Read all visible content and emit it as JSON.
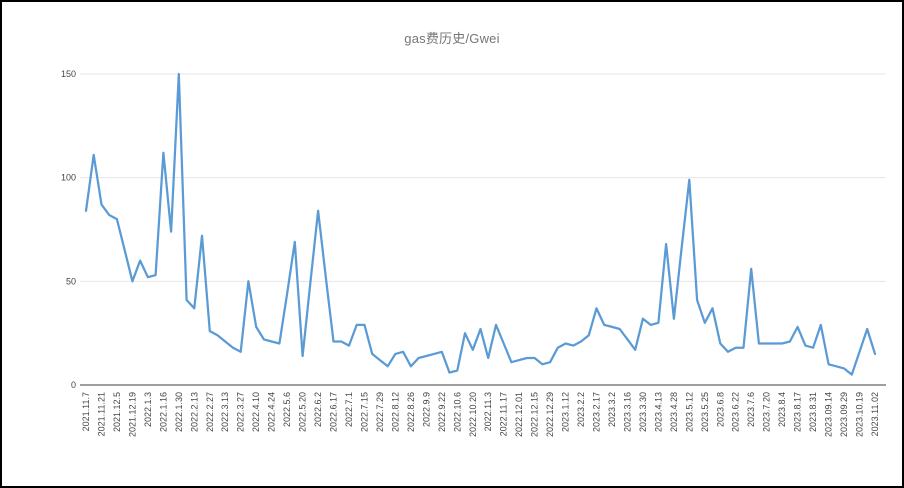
{
  "title": "gas费历史/Gwei",
  "chart_data": {
    "type": "line",
    "title": "gas费历史/Gwei",
    "unit": "Gwei",
    "xlabel": "",
    "ylabel": "",
    "ylim": [
      0,
      150
    ],
    "yticks": [
      0,
      50,
      100,
      150
    ],
    "grid": true,
    "legend_position": "none",
    "line_color": "#5b9bd5",
    "gridline_color": "#e6e6e6",
    "axis_color": "#9e9e9e",
    "tick_label_color": "#444444",
    "title_color": "#757575",
    "points_per_label": 2,
    "x_labels": [
      "2021.11.7",
      "2021.11.21",
      "2021.12.5",
      "2021.12.19",
      "2022.1.3",
      "2022.1.16",
      "2022.1.30",
      "2022.2.13",
      "2022.2.27",
      "2022.3.13",
      "2022.3.27",
      "2022.4.10",
      "2022.4.24",
      "2022.5.6",
      "2022.5.20",
      "2022.6.2",
      "2022.6.17",
      "2022.7.1",
      "2022.7.15",
      "2022.7.29",
      "2022.8.12",
      "2022.8.26",
      "2022.9.9",
      "2022.9.22",
      "2022.10.6",
      "2022.10.20",
      "2022.11.3",
      "2022.11.17",
      "2022.12.01",
      "2022.12.15",
      "2022.12.29",
      "2023.1.12",
      "2023.2.2",
      "2023.2.17",
      "2023.3.2",
      "2023.3.16",
      "2023.3.30",
      "2023.4.13",
      "2023.4.28",
      "2023.5.12",
      "2023.5.25",
      "2023.6.8",
      "2023.6.22",
      "2023.7.6",
      "2023.7.20",
      "2023.8.4",
      "2023.8.17",
      "2023.8.31",
      "2023.09.14",
      "2023.09.29",
      "2023.10.19",
      "2023.11.02"
    ],
    "values": [
      84,
      111,
      87,
      82,
      80,
      65,
      50,
      60,
      52,
      53,
      112,
      74,
      150,
      41,
      37,
      72,
      26,
      24,
      21,
      18,
      16,
      50,
      28,
      22,
      21,
      20,
      44,
      69,
      14,
      49,
      84,
      52,
      21,
      21,
      19,
      29,
      29,
      15,
      12,
      9,
      15,
      16,
      9,
      13,
      14,
      15,
      16,
      6,
      7,
      25,
      17,
      27,
      13,
      29,
      20,
      11,
      12,
      13,
      13,
      10,
      11,
      18,
      20,
      19,
      21,
      24,
      37,
      29,
      28,
      27,
      22,
      17,
      32,
      29,
      30,
      68,
      32,
      66,
      99,
      41,
      30,
      37,
      20,
      16,
      18,
      18,
      56,
      20,
      20,
      20,
      20,
      21,
      28,
      19,
      18,
      29,
      10,
      9,
      8,
      5,
      16,
      27,
      15
    ]
  }
}
